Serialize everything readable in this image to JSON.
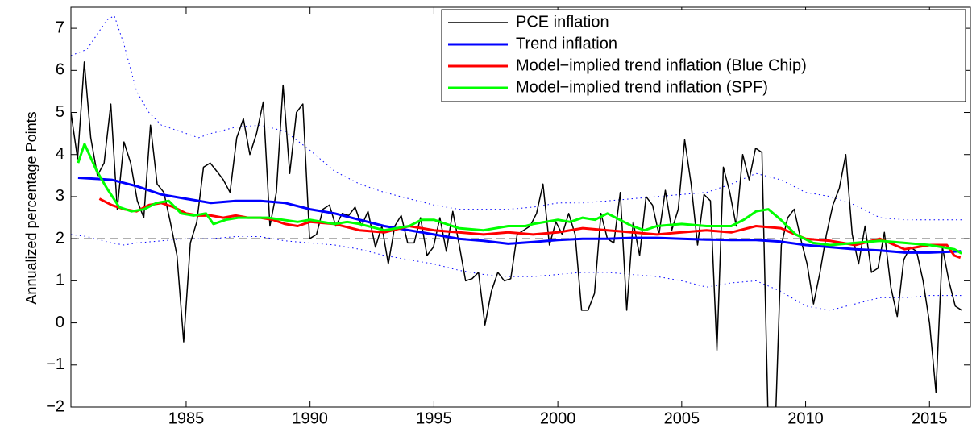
{
  "chart_data": {
    "type": "line",
    "ylabel": "Annualized percentage Points",
    "xlim": [
      1980.35,
      2016.65
    ],
    "ylim": [
      -2,
      7.5
    ],
    "xticks": [
      1985,
      1990,
      1995,
      2000,
      2005,
      2010,
      2015
    ],
    "yticks": [
      {
        "value": -2,
        "label": "−2"
      },
      {
        "value": -1,
        "label": "−1"
      },
      0,
      1,
      2,
      3,
      4,
      5,
      6,
      7
    ],
    "reference_line": {
      "value": 2,
      "color": "#808080"
    },
    "legend": "upper right",
    "series": [
      {
        "name": "PCE inflation",
        "color": "#000000",
        "width": 1.5,
        "x": [
          1980.35,
          1980.62,
          1980.89,
          1981.15,
          1981.42,
          1981.69,
          1981.96,
          1982.22,
          1982.49,
          1982.76,
          1983.03,
          1983.29,
          1983.56,
          1983.83,
          1984.1,
          1984.36,
          1984.63,
          1984.9,
          1985.17,
          1985.43,
          1985.7,
          1985.97,
          1986.24,
          1986.5,
          1986.77,
          1987.04,
          1987.31,
          1987.57,
          1987.84,
          1988.11,
          1988.38,
          1988.64,
          1988.91,
          1989.18,
          1989.45,
          1989.71,
          1989.98,
          1990.26,
          1990.52,
          1990.78,
          1991.04,
          1991.3,
          1991.56,
          1991.82,
          1992.08,
          1992.34,
          1992.64,
          1992.9,
          1993.16,
          1993.42,
          1993.68,
          1993.94,
          1994.2,
          1994.46,
          1994.72,
          1994.98,
          1995.24,
          1995.5,
          1995.76,
          1996.02,
          1996.28,
          1996.54,
          1996.8,
          1997.06,
          1997.32,
          1997.58,
          1997.84,
          1998.1,
          1998.36,
          1998.62,
          1998.88,
          1999.14,
          1999.4,
          1999.66,
          1999.92,
          2000.18,
          2000.44,
          2000.7,
          2000.96,
          2001.22,
          2001.48,
          2001.74,
          2002.0,
          2002.26,
          2002.52,
          2002.78,
          2003.04,
          2003.3,
          2003.56,
          2003.82,
          2004.08,
          2004.34,
          2004.6,
          2004.86,
          2005.12,
          2005.38,
          2005.64,
          2005.9,
          2006.16,
          2006.42,
          2006.68,
          2006.94,
          2007.2,
          2007.46,
          2007.72,
          2007.98,
          2008.24,
          2008.5,
          2008.76,
          2009.02,
          2009.28,
          2009.54,
          2009.8,
          2010.06,
          2010.32,
          2010.58,
          2010.84,
          2011.1,
          2011.36,
          2011.62,
          2011.88,
          2012.14,
          2012.4,
          2012.66,
          2012.92,
          2013.18,
          2013.44,
          2013.7,
          2013.96,
          2014.22,
          2014.48,
          2014.74,
          2015.0,
          2015.26,
          2015.52,
          2015.78,
          2016.04,
          2016.3
        ],
        "values": [
          5.0,
          3.9,
          6.2,
          4.4,
          3.5,
          3.8,
          5.2,
          2.7,
          4.3,
          3.8,
          2.9,
          2.5,
          4.7,
          3.3,
          3.1,
          2.4,
          1.6,
          -0.45,
          1.9,
          2.4,
          3.7,
          3.8,
          3.6,
          3.4,
          3.1,
          4.4,
          4.85,
          4.0,
          4.5,
          5.25,
          2.3,
          3.1,
          5.65,
          3.55,
          5.0,
          5.2,
          2.0,
          2.1,
          2.7,
          2.8,
          2.3,
          2.6,
          2.55,
          2.75,
          2.3,
          2.65,
          1.8,
          2.3,
          1.4,
          2.3,
          2.55,
          1.9,
          1.9,
          2.5,
          1.6,
          1.8,
          2.5,
          1.7,
          2.65,
          1.85,
          1.0,
          1.05,
          1.2,
          -0.05,
          0.75,
          1.2,
          1.0,
          1.05,
          2.1,
          2.2,
          2.3,
          2.6,
          3.3,
          1.85,
          2.4,
          2.1,
          2.6,
          2.1,
          0.3,
          0.3,
          0.7,
          2.6,
          2.0,
          1.9,
          3.1,
          0.3,
          2.4,
          1.6,
          3.0,
          2.8,
          2.1,
          3.15,
          2.2,
          2.7,
          4.35,
          3.3,
          1.85,
          3.05,
          2.9,
          -0.65,
          3.7,
          3.1,
          2.3,
          4.0,
          3.4,
          4.15,
          4.05,
          -2.6,
          -2.8,
          1.85,
          2.5,
          2.7,
          2.0,
          1.4,
          0.45,
          1.2,
          2.1,
          2.8,
          3.2,
          4.0,
          2.1,
          1.4,
          2.3,
          1.2,
          1.3,
          2.15,
          0.85,
          0.15,
          1.5,
          1.8,
          1.7,
          1.0,
          0.0,
          -1.65,
          1.8,
          1.0,
          0.4,
          0.3
        ]
      },
      {
        "name": "Trend inflation",
        "color": "#0000ff",
        "width": 3,
        "x": [
          1980.64,
          1982,
          1983,
          1984,
          1985,
          1986,
          1987,
          1988,
          1989,
          1990,
          1991,
          1992,
          1993,
          1994,
          1995,
          1996,
          1997,
          1998,
          1999,
          2000,
          2001,
          2002,
          2003,
          2004,
          2005,
          2006,
          2007,
          2008,
          2009,
          2010,
          2011,
          2012,
          2013,
          2014,
          2015,
          2016.27
        ],
        "values": [
          3.45,
          3.4,
          3.25,
          3.05,
          2.95,
          2.85,
          2.9,
          2.9,
          2.85,
          2.7,
          2.6,
          2.45,
          2.3,
          2.2,
          2.1,
          2.0,
          1.95,
          1.88,
          1.92,
          1.97,
          2.0,
          2.0,
          2.02,
          2.02,
          2.0,
          1.98,
          1.97,
          1.97,
          1.93,
          1.85,
          1.8,
          1.75,
          1.72,
          1.67,
          1.67,
          1.7
        ]
      },
      {
        "name": "Model−implied trend inflation (Blue Chip)",
        "color": "#ff0000",
        "width": 3,
        "x": [
          1981.5,
          1982,
          1982.5,
          1983,
          1983.5,
          1984,
          1984.5,
          1985,
          1985.5,
          1986,
          1986.5,
          1987,
          1987.5,
          1988,
          1988.5,
          1989,
          1989.5,
          1990,
          1991,
          1992,
          1993,
          1994,
          1995,
          1996,
          1997,
          1998,
          1999,
          2000,
          2001,
          2002,
          2003,
          2004,
          2005,
          2006,
          2007,
          2008,
          2009,
          2010,
          2011,
          2012,
          2013,
          2014,
          2015,
          2015.7,
          2016,
          2016.25
        ],
        "values": [
          2.95,
          2.8,
          2.7,
          2.65,
          2.8,
          2.85,
          2.75,
          2.6,
          2.55,
          2.55,
          2.5,
          2.55,
          2.5,
          2.5,
          2.45,
          2.35,
          2.3,
          2.4,
          2.35,
          2.2,
          2.15,
          2.3,
          2.2,
          2.15,
          2.1,
          2.15,
          2.1,
          2.15,
          2.25,
          2.2,
          2.15,
          2.1,
          2.15,
          2.2,
          2.15,
          2.3,
          2.25,
          2.0,
          1.95,
          1.85,
          2.0,
          1.75,
          1.85,
          1.85,
          1.6,
          1.55
        ]
      },
      {
        "name": "Model−implied trend inflation (SPF)",
        "color": "#00ff00",
        "width": 3,
        "x": [
          1980.64,
          1980.9,
          1981.4,
          1981.8,
          1982.3,
          1982.8,
          1983.3,
          1983.8,
          1984.3,
          1984.8,
          1985.3,
          1985.8,
          1986.1,
          1986.6,
          1987.1,
          1987.7,
          1988.3,
          1988.9,
          1989.5,
          1990,
          1990.5,
          1991,
          1991.5,
          1992,
          1993,
          1994,
          1994.5,
          1995,
          1995.5,
          1996,
          1997,
          1998,
          1998.7,
          1999,
          2000,
          2000.5,
          2001,
          2001.5,
          2002,
          2002.5,
          2003,
          2003.5,
          2004,
          2005,
          2006,
          2007,
          2007.5,
          2008,
          2008.5,
          2009,
          2009.6,
          2010.3,
          2011,
          2012,
          2013,
          2014,
          2015,
          2016,
          2016.3
        ],
        "values": [
          3.8,
          4.25,
          3.6,
          3.2,
          2.75,
          2.65,
          2.7,
          2.85,
          2.9,
          2.6,
          2.55,
          2.6,
          2.35,
          2.45,
          2.5,
          2.5,
          2.5,
          2.45,
          2.4,
          2.45,
          2.4,
          2.35,
          2.4,
          2.35,
          2.2,
          2.3,
          2.45,
          2.45,
          2.35,
          2.25,
          2.2,
          2.3,
          2.3,
          2.35,
          2.45,
          2.4,
          2.5,
          2.45,
          2.6,
          2.45,
          2.3,
          2.2,
          2.3,
          2.35,
          2.3,
          2.3,
          2.45,
          2.65,
          2.7,
          2.45,
          2.1,
          1.9,
          1.85,
          1.9,
          1.95,
          1.9,
          1.85,
          1.75,
          1.65
        ]
      },
      {
        "color": "#0000ff",
        "width": 1,
        "style": "dotted",
        "x": [
          1980.35,
          1981,
          1981.8,
          1982.1,
          1982.5,
          1983,
          1983.5,
          1984,
          1985,
          1985.5,
          1986,
          1987,
          1988,
          1989,
          1990,
          1991,
          1992,
          1993,
          1994,
          1995,
          1996,
          1997,
          1998,
          1999,
          2000,
          2001,
          2002,
          2003,
          2004,
          2005,
          2006,
          2007,
          2008,
          2009,
          2010,
          2011,
          2012,
          2013,
          2014,
          2015,
          2016.3
        ],
        "values": [
          6.35,
          6.5,
          7.2,
          7.3,
          6.6,
          5.5,
          5.0,
          4.7,
          4.5,
          4.4,
          4.5,
          4.65,
          4.7,
          4.55,
          4.1,
          3.6,
          3.3,
          3.1,
          2.95,
          2.8,
          2.7,
          2.7,
          2.7,
          2.75,
          2.85,
          2.85,
          2.9,
          2.95,
          3.0,
          3.05,
          3.1,
          3.3,
          3.55,
          3.4,
          3.1,
          3.0,
          2.8,
          2.5,
          2.45,
          2.45,
          2.45
        ]
      },
      {
        "color": "#0000ff",
        "width": 1,
        "style": "dotted",
        "x": [
          1980.35,
          1981,
          1982,
          1982.5,
          1983,
          1984,
          1985,
          1986,
          1987,
          1988,
          1989,
          1990,
          1991,
          1992,
          1993,
          1994,
          1995,
          1996,
          1997,
          1998,
          1999,
          2000,
          2001,
          2002,
          2003,
          2004,
          2005,
          2006,
          2007,
          2008,
          2009,
          2010,
          2011,
          2012,
          2013,
          2014,
          2015,
          2016.3
        ],
        "values": [
          2.1,
          2.05,
          1.9,
          1.85,
          1.9,
          1.95,
          2.0,
          2.0,
          2.05,
          2.05,
          1.95,
          1.9,
          1.85,
          1.75,
          1.6,
          1.5,
          1.4,
          1.25,
          1.15,
          1.1,
          1.1,
          1.15,
          1.2,
          1.2,
          1.15,
          1.1,
          1.0,
          0.85,
          0.95,
          1.0,
          0.75,
          0.4,
          0.3,
          0.45,
          0.6,
          0.6,
          0.65,
          0.65
        ]
      }
    ]
  }
}
